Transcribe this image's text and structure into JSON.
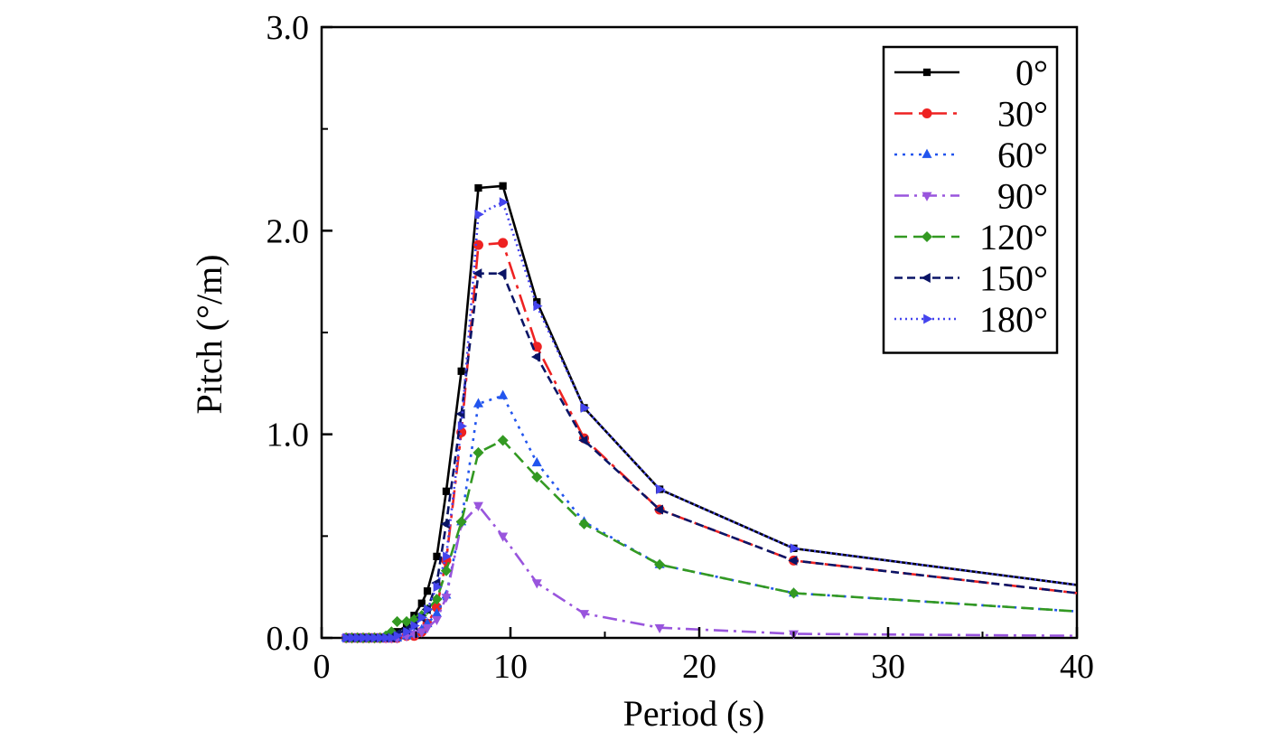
{
  "chart_data": {
    "type": "line",
    "xlabel": "Period (s)",
    "ylabel": "Pitch (°/m)",
    "xlim": [
      0,
      40
    ],
    "ylim": [
      0,
      3.0
    ],
    "x_ticks": [
      0,
      10,
      20,
      30,
      40
    ],
    "x_tick_labels": [
      "0",
      "10",
      "20",
      "30",
      "40"
    ],
    "y_ticks": [
      0,
      1.0,
      2.0,
      3.0
    ],
    "y_tick_labels": [
      "0.0",
      "1.0",
      "2.0",
      "3.0"
    ],
    "grid": false,
    "legend_position": "top-right",
    "x": [
      1.3,
      1.6,
      1.9,
      2.2,
      2.5,
      2.8,
      3.1,
      3.4,
      3.7,
      4.0,
      4.5,
      4.9,
      5.3,
      5.6,
      6.1,
      6.6,
      7.4,
      8.3,
      9.6,
      11.4,
      13.9,
      17.9,
      25.0,
      40.0
    ],
    "series": [
      {
        "name": "0°",
        "color": "#000000",
        "dash": "",
        "marker": "square",
        "values": [
          0,
          0,
          0,
          0,
          0,
          0,
          0,
          0,
          0.01,
          0.03,
          0.06,
          0.11,
          0.17,
          0.23,
          0.4,
          0.72,
          1.31,
          2.21,
          2.22,
          1.65,
          1.13,
          0.73,
          0.44,
          0.26
        ]
      },
      {
        "name": "30°",
        "color": "#ee2222",
        "dash": "20,7,4,7",
        "marker": "circle",
        "values": [
          0,
          0,
          0,
          0,
          0,
          0,
          0,
          0,
          0,
          0,
          0.01,
          0.01,
          0.03,
          0.07,
          0.15,
          0.38,
          1.01,
          1.93,
          1.94,
          1.43,
          0.98,
          0.63,
          0.38,
          0.22
        ]
      },
      {
        "name": "60°",
        "color": "#2255ee",
        "dash": "3,6",
        "marker": "triangle-up",
        "values": [
          0,
          0,
          0,
          0,
          0,
          0,
          0,
          0,
          0,
          0,
          0.01,
          0.02,
          0.04,
          0.07,
          0.12,
          0.21,
          0.57,
          1.15,
          1.19,
          0.86,
          0.57,
          0.36,
          0.22,
          0.13
        ]
      },
      {
        "name": "90°",
        "color": "#9955dd",
        "dash": "16,6,3,6",
        "marker": "triangle-down",
        "values": [
          0,
          0,
          0,
          0,
          0,
          0,
          0,
          0,
          0,
          0,
          0.01,
          0.02,
          0.03,
          0.05,
          0.09,
          0.2,
          0.56,
          0.65,
          0.5,
          0.27,
          0.12,
          0.05,
          0.02,
          0.01
        ]
      },
      {
        "name": "120°",
        "color": "#339922",
        "dash": "14,7",
        "marker": "diamond",
        "values": [
          0,
          0,
          0,
          0,
          0,
          0,
          0,
          0.01,
          0.03,
          0.08,
          0.08,
          0.09,
          0.11,
          0.14,
          0.19,
          0.33,
          0.57,
          0.91,
          0.97,
          0.79,
          0.56,
          0.36,
          0.22,
          0.13
        ]
      },
      {
        "name": "150°",
        "color": "#0a1466",
        "dash": "9,5",
        "marker": "triangle-left",
        "values": [
          0,
          0,
          0,
          0,
          0,
          0,
          0,
          0,
          0,
          0.02,
          0.04,
          0.06,
          0.1,
          0.14,
          0.27,
          0.56,
          1.1,
          1.79,
          1.79,
          1.38,
          0.97,
          0.63,
          0.38,
          0.22
        ]
      },
      {
        "name": "180°",
        "color": "#4444ee",
        "dash": "2,4",
        "marker": "triangle-right",
        "values": [
          0,
          0,
          0,
          0,
          0,
          0,
          0,
          0,
          0,
          0.01,
          0.03,
          0.06,
          0.1,
          0.14,
          0.25,
          0.4,
          1.04,
          2.08,
          2.14,
          1.63,
          1.13,
          0.73,
          0.44,
          0.26
        ]
      }
    ]
  }
}
